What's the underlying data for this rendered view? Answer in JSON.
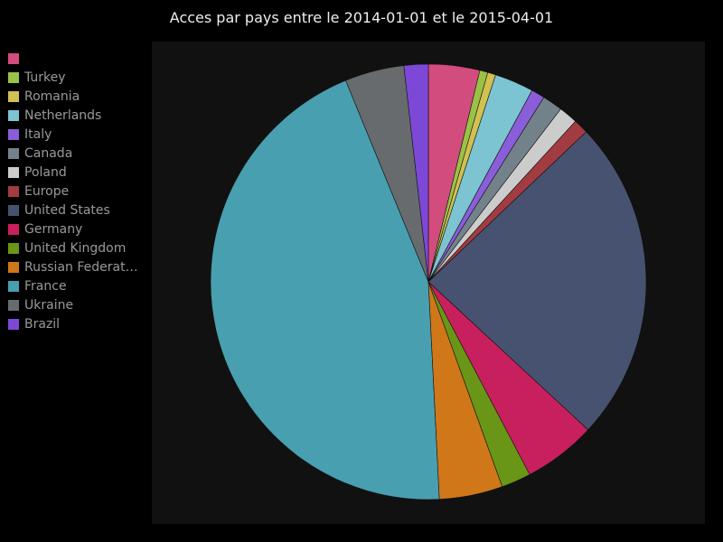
{
  "chart_data": {
    "type": "pie",
    "title": "Acces par pays entre le 2014-01-01 et le 2015-04-01",
    "legend_position": "left",
    "slices": [
      {
        "label": "",
        "value": 3.8,
        "color": "#d34c7e"
      },
      {
        "label": "Turkey",
        "value": 0.6,
        "color": "#9ac246"
      },
      {
        "label": "Romania",
        "value": 0.6,
        "color": "#d2c050"
      },
      {
        "label": "Netherlands",
        "value": 2.9,
        "color": "#7cc4d2"
      },
      {
        "label": "Italy",
        "value": 1.0,
        "color": "#8a5ed8"
      },
      {
        "label": "Canada",
        "value": 1.5,
        "color": "#73828a"
      },
      {
        "label": "Poland",
        "value": 1.4,
        "color": "#cccccc"
      },
      {
        "label": "Europe",
        "value": 1.1,
        "color": "#a33c42"
      },
      {
        "label": "United States",
        "value": 24.0,
        "color": "#475270"
      },
      {
        "label": "Germany",
        "value": 5.4,
        "color": "#c8205e"
      },
      {
        "label": "United Kingdom",
        "value": 2.2,
        "color": "#6a9617"
      },
      {
        "label": "Russian Federation",
        "value": 4.7,
        "color": "#cf7719"
      },
      {
        "label": "France",
        "value": 44.6,
        "color": "#489fb0"
      },
      {
        "label": "Ukraine",
        "value": 4.4,
        "color": "#676b6e"
      },
      {
        "label": "Brazil",
        "value": 1.8,
        "color": "#7d48d6"
      }
    ]
  }
}
